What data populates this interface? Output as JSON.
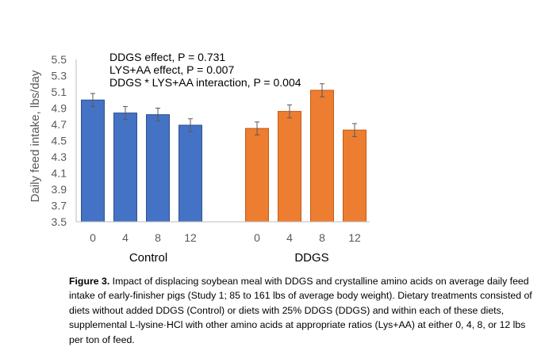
{
  "chart_data": {
    "type": "bar",
    "title": "",
    "ylabel": "Daily feed intake, lbs/day",
    "xlabel": "",
    "ylim": [
      3.5,
      5.5
    ],
    "yticks": [
      "5.5",
      "5.3",
      "5.1",
      "4.9",
      "4.7",
      "4.5",
      "4.3",
      "4.1",
      "3.9",
      "3.7",
      "3.5"
    ],
    "groups": [
      {
        "name": "Control",
        "color": "#4472C4",
        "categories": [
          "0",
          "4",
          "8",
          "12"
        ],
        "values": [
          5.0,
          4.84,
          4.82,
          4.69
        ],
        "errors": [
          0.08,
          0.08,
          0.08,
          0.08
        ]
      },
      {
        "name": "DDGS",
        "color": "#ED7D31",
        "categories": [
          "0",
          "4",
          "8",
          "12"
        ],
        "values": [
          4.65,
          4.86,
          5.12,
          4.63
        ],
        "errors": [
          0.08,
          0.08,
          0.08,
          0.08
        ]
      }
    ],
    "annotations": [
      "DDGS effect, P = 0.731",
      "LYS+AA effect, P = 0.007",
      "DDGS * LYS+AA interaction, P = 0.004"
    ],
    "grid": false
  },
  "caption": {
    "label": "Figure 3.",
    "text": " Impact of displacing soybean meal with DDGS and crystalline amino acids on average daily feed intake of early-finisher pigs (Study 1; 85 to 161 lbs of average body weight). Dietary treatments consisted of diets without added DDGS (Control) or diets with 25% DDGS (DDGS) and within each of these diets, supplemental L-lysine·HCl with other amino acids at appropriate ratios (Lys+AA) at either 0, 4, 8, or 12 lbs per ton of feed."
  }
}
